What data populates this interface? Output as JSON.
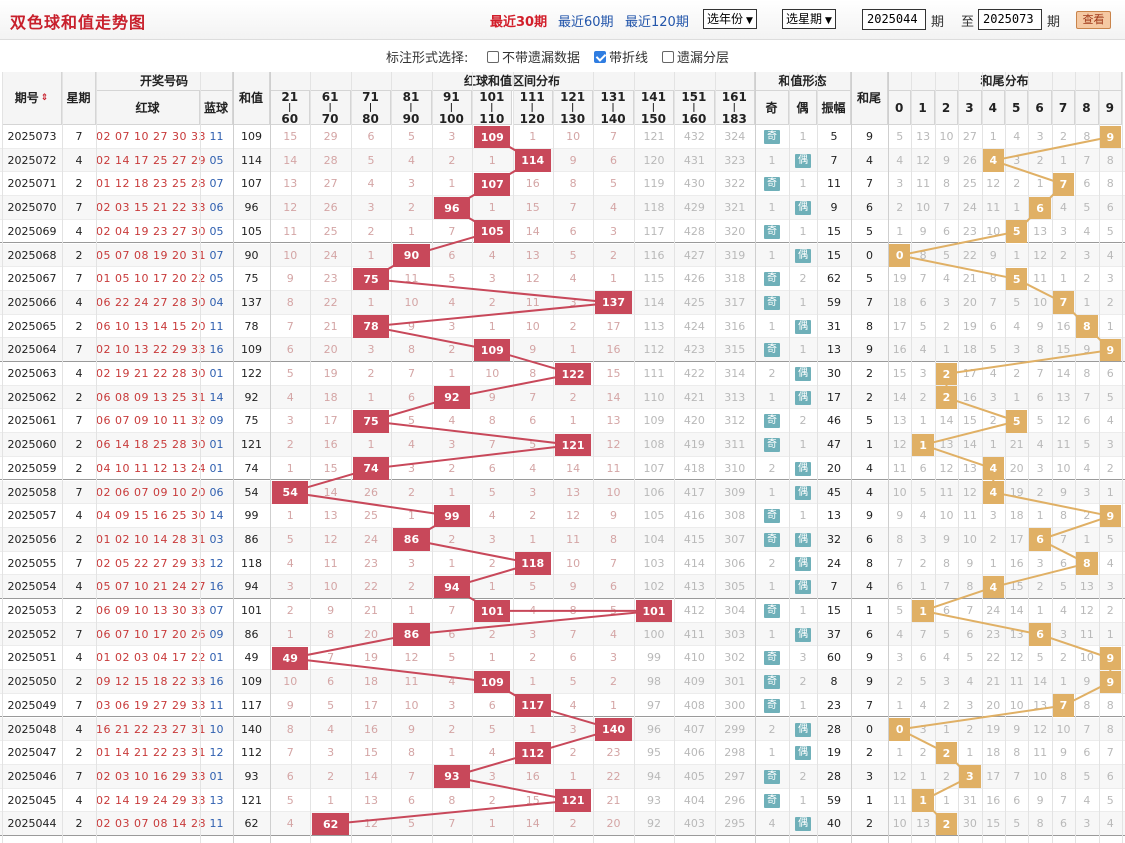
{
  "title": "双色球和值走势图",
  "periods": [
    {
      "label": "最近30期",
      "active": true
    },
    {
      "label": "最近60期",
      "active": false
    },
    {
      "label": "最近120期",
      "active": false
    }
  ],
  "year_select": "选年份",
  "weekday_select": "选星期",
  "from_value": "2025044",
  "from_suffix": "期",
  "to_label": "至",
  "to_value": "2025073",
  "to_suffix": "期",
  "query_button": "查看",
  "option_prompt": "标注形式选择:",
  "options": [
    {
      "label": "不带遗漏数据",
      "checked": false
    },
    {
      "label": "带折线",
      "checked": true
    },
    {
      "label": "遗漏分层",
      "checked": false
    }
  ],
  "headers": {
    "period": "期号",
    "weekday": "星期",
    "draw": "开奖号码",
    "red": "红球",
    "blue": "蓝球",
    "sum": "和值",
    "interval": "红球和值区间分布",
    "form": "和值形态",
    "tail": "和尾",
    "tail_dist": "和尾分布",
    "odd": "奇",
    "even": "偶",
    "amp": "振幅",
    "ranges": [
      [
        "21",
        "60"
      ],
      [
        "61",
        "70"
      ],
      [
        "71",
        "80"
      ],
      [
        "81",
        "90"
      ],
      [
        "91",
        "100"
      ],
      [
        "101",
        "110"
      ],
      [
        "111",
        "120"
      ],
      [
        "121",
        "130"
      ],
      [
        "131",
        "140"
      ],
      [
        "141",
        "150"
      ],
      [
        "151",
        "160"
      ],
      [
        "161",
        "183"
      ]
    ],
    "digits": [
      "0",
      "1",
      "2",
      "3",
      "4",
      "5",
      "6",
      "7",
      "8",
      "9"
    ]
  },
  "rows": [
    {
      "p": "2025073",
      "w": "7",
      "r": "02 07 10 27 30 33",
      "b": "11",
      "s": "109",
      "iv": [
        "15",
        "29",
        "6",
        "5",
        "3",
        "109",
        "1",
        "10",
        "7",
        "121",
        "432",
        "324"
      ],
      "o": "奇",
      "e": "1",
      "a": "5",
      "t": "9",
      "td": [
        "5",
        "13",
        "10",
        "27",
        "1",
        "4",
        "3",
        "2",
        "8",
        "9"
      ]
    },
    {
      "p": "2025072",
      "w": "4",
      "r": "02 14 17 25 27 29",
      "b": "05",
      "s": "114",
      "iv": [
        "14",
        "28",
        "5",
        "4",
        "2",
        "1",
        "114",
        "9",
        "6",
        "120",
        "431",
        "323"
      ],
      "o": "1",
      "e": "偶",
      "a": "7",
      "t": "4",
      "td": [
        "4",
        "12",
        "9",
        "26",
        "4",
        "3",
        "2",
        "1",
        "7",
        "8"
      ]
    },
    {
      "p": "2025071",
      "w": "2",
      "r": "01 12 18 23 25 28",
      "b": "07",
      "s": "107",
      "iv": [
        "13",
        "27",
        "4",
        "3",
        "1",
        "107",
        "16",
        "8",
        "5",
        "119",
        "430",
        "322"
      ],
      "o": "奇",
      "e": "1",
      "a": "11",
      "t": "7",
      "td": [
        "3",
        "11",
        "8",
        "25",
        "12",
        "2",
        "1",
        "7",
        "6",
        "8"
      ]
    },
    {
      "p": "2025070",
      "w": "7",
      "r": "02 03 15 21 22 33",
      "b": "06",
      "s": "96",
      "iv": [
        "12",
        "26",
        "3",
        "2",
        "96",
        "1",
        "15",
        "7",
        "4",
        "118",
        "429",
        "321"
      ],
      "o": "1",
      "e": "偶",
      "a": "9",
      "t": "6",
      "td": [
        "2",
        "10",
        "7",
        "24",
        "11",
        "1",
        "6",
        "4",
        "5",
        "6"
      ]
    },
    {
      "p": "2025069",
      "w": "4",
      "r": "02 04 19 23 27 30",
      "b": "05",
      "s": "105",
      "iv": [
        "11",
        "25",
        "2",
        "1",
        "7",
        "105",
        "14",
        "6",
        "3",
        "117",
        "428",
        "320"
      ],
      "o": "奇",
      "e": "1",
      "a": "15",
      "t": "5",
      "td": [
        "1",
        "9",
        "6",
        "23",
        "10",
        "5",
        "13",
        "3",
        "4",
        "5"
      ]
    },
    {
      "p": "2025068",
      "w": "2",
      "r": "05 07 08 19 20 31",
      "b": "07",
      "s": "90",
      "iv": [
        "10",
        "24",
        "1",
        "90",
        "6",
        "4",
        "13",
        "5",
        "2",
        "116",
        "427",
        "319"
      ],
      "o": "1",
      "e": "偶",
      "a": "15",
      "t": "0",
      "td": [
        "0",
        "8",
        "5",
        "22",
        "9",
        "1",
        "12",
        "2",
        "3",
        "4"
      ]
    },
    {
      "p": "2025067",
      "w": "7",
      "r": "01 05 10 17 20 22",
      "b": "05",
      "s": "75",
      "iv": [
        "9",
        "23",
        "75",
        "11",
        "5",
        "3",
        "12",
        "4",
        "1",
        "115",
        "426",
        "318"
      ],
      "o": "奇",
      "e": "2",
      "a": "62",
      "t": "5",
      "td": [
        "19",
        "7",
        "4",
        "21",
        "8",
        "5",
        "11",
        "1",
        "2",
        "3"
      ]
    },
    {
      "p": "2025066",
      "w": "4",
      "r": "06 22 24 27 28 30",
      "b": "04",
      "s": "137",
      "iv": [
        "8",
        "22",
        "1",
        "10",
        "4",
        "2",
        "11",
        "3",
        "137",
        "114",
        "425",
        "317"
      ],
      "o": "奇",
      "e": "1",
      "a": "59",
      "t": "7",
      "td": [
        "18",
        "6",
        "3",
        "20",
        "7",
        "5",
        "10",
        "7",
        "1",
        "2"
      ]
    },
    {
      "p": "2025065",
      "w": "2",
      "r": "06 10 13 14 15 20",
      "b": "11",
      "s": "78",
      "iv": [
        "7",
        "21",
        "78",
        "9",
        "3",
        "1",
        "10",
        "2",
        "17",
        "113",
        "424",
        "316"
      ],
      "o": "1",
      "e": "偶",
      "a": "31",
      "t": "8",
      "td": [
        "17",
        "5",
        "2",
        "19",
        "6",
        "4",
        "9",
        "16",
        "8",
        "1"
      ]
    },
    {
      "p": "2025064",
      "w": "7",
      "r": "02 10 13 22 29 33",
      "b": "16",
      "s": "109",
      "iv": [
        "6",
        "20",
        "3",
        "8",
        "2",
        "109",
        "9",
        "1",
        "16",
        "112",
        "423",
        "315"
      ],
      "o": "奇",
      "e": "1",
      "a": "13",
      "t": "9",
      "td": [
        "16",
        "4",
        "1",
        "18",
        "5",
        "3",
        "8",
        "15",
        "9",
        "9"
      ]
    },
    {
      "p": "2025063",
      "w": "4",
      "r": "02 19 21 22 28 30",
      "b": "01",
      "s": "122",
      "iv": [
        "5",
        "19",
        "2",
        "7",
        "1",
        "10",
        "8",
        "122",
        "15",
        "111",
        "422",
        "314"
      ],
      "o": "2",
      "e": "偶",
      "a": "30",
      "t": "2",
      "td": [
        "15",
        "3",
        "2",
        "17",
        "4",
        "2",
        "7",
        "14",
        "8",
        "6"
      ]
    },
    {
      "p": "2025062",
      "w": "2",
      "r": "06 08 09 13 25 31",
      "b": "14",
      "s": "92",
      "iv": [
        "4",
        "18",
        "1",
        "6",
        "92",
        "9",
        "7",
        "2",
        "14",
        "110",
        "421",
        "313"
      ],
      "o": "1",
      "e": "偶",
      "a": "17",
      "t": "2",
      "td": [
        "14",
        "2",
        "2",
        "16",
        "3",
        "1",
        "6",
        "13",
        "7",
        "5"
      ]
    },
    {
      "p": "2025061",
      "w": "7",
      "r": "06 07 09 10 11 32",
      "b": "09",
      "s": "75",
      "iv": [
        "3",
        "17",
        "75",
        "5",
        "4",
        "8",
        "6",
        "1",
        "13",
        "109",
        "420",
        "312"
      ],
      "o": "奇",
      "e": "2",
      "a": "46",
      "t": "5",
      "td": [
        "13",
        "1",
        "14",
        "15",
        "2",
        "5",
        "5",
        "12",
        "6",
        "4"
      ]
    },
    {
      "p": "2025060",
      "w": "2",
      "r": "06 14 18 25 28 30",
      "b": "01",
      "s": "121",
      "iv": [
        "2",
        "16",
        "1",
        "4",
        "3",
        "7",
        "5",
        "121",
        "12",
        "108",
        "419",
        "311"
      ],
      "o": "奇",
      "e": "1",
      "a": "47",
      "t": "1",
      "td": [
        "12",
        "1",
        "13",
        "14",
        "1",
        "21",
        "4",
        "11",
        "5",
        "3"
      ]
    },
    {
      "p": "2025059",
      "w": "2",
      "r": "04 10 11 12 13 24",
      "b": "01",
      "s": "74",
      "iv": [
        "1",
        "15",
        "74",
        "3",
        "2",
        "6",
        "4",
        "14",
        "11",
        "107",
        "418",
        "310"
      ],
      "o": "2",
      "e": "偶",
      "a": "20",
      "t": "4",
      "td": [
        "11",
        "6",
        "12",
        "13",
        "4",
        "20",
        "3",
        "10",
        "4",
        "2"
      ]
    },
    {
      "p": "2025058",
      "w": "7",
      "r": "02 06 07 09 10 20",
      "b": "06",
      "s": "54",
      "iv": [
        "54",
        "14",
        "26",
        "2",
        "1",
        "5",
        "3",
        "13",
        "10",
        "106",
        "417",
        "309"
      ],
      "o": "1",
      "e": "偶",
      "a": "45",
      "t": "4",
      "td": [
        "10",
        "5",
        "11",
        "12",
        "4",
        "19",
        "2",
        "9",
        "3",
        "1"
      ]
    },
    {
      "p": "2025057",
      "w": "4",
      "r": "04 09 15 16 25 30",
      "b": "14",
      "s": "99",
      "iv": [
        "1",
        "13",
        "25",
        "1",
        "99",
        "4",
        "2",
        "12",
        "9",
        "105",
        "416",
        "308"
      ],
      "o": "奇",
      "e": "1",
      "a": "13",
      "t": "9",
      "td": [
        "9",
        "4",
        "10",
        "11",
        "3",
        "18",
        "1",
        "8",
        "2",
        "9"
      ]
    },
    {
      "p": "2025056",
      "w": "2",
      "r": "01 02 10 14 28 31",
      "b": "03",
      "s": "86",
      "iv": [
        "5",
        "12",
        "24",
        "86",
        "2",
        "3",
        "1",
        "11",
        "8",
        "104",
        "415",
        "307"
      ],
      "o": "奇",
      "e": "偶",
      "a": "32",
      "t": "6",
      "td": [
        "8",
        "3",
        "9",
        "10",
        "2",
        "17",
        "6",
        "7",
        "1",
        "5"
      ]
    },
    {
      "p": "2025055",
      "w": "7",
      "r": "02 05 22 27 29 33",
      "b": "12",
      "s": "118",
      "iv": [
        "4",
        "11",
        "23",
        "3",
        "1",
        "2",
        "118",
        "10",
        "7",
        "103",
        "414",
        "306"
      ],
      "o": "2",
      "e": "偶",
      "a": "24",
      "t": "8",
      "td": [
        "7",
        "2",
        "8",
        "9",
        "1",
        "16",
        "3",
        "6",
        "8",
        "4"
      ]
    },
    {
      "p": "2025054",
      "w": "4",
      "r": "05 07 10 21 24 27",
      "b": "16",
      "s": "94",
      "iv": [
        "3",
        "10",
        "22",
        "2",
        "94",
        "1",
        "5",
        "9",
        "6",
        "102",
        "413",
        "305"
      ],
      "o": "1",
      "e": "偶",
      "a": "7",
      "t": "4",
      "td": [
        "6",
        "1",
        "7",
        "8",
        "4",
        "15",
        "2",
        "5",
        "13",
        "3"
      ]
    },
    {
      "p": "2025053",
      "w": "2",
      "r": "06 09 10 13 30 33",
      "b": "07",
      "s": "101",
      "iv": [
        "2",
        "9",
        "21",
        "1",
        "7",
        "101",
        "4",
        "8",
        "5",
        "101",
        "412",
        "304"
      ],
      "o": "奇",
      "e": "1",
      "a": "15",
      "t": "1",
      "td": [
        "5",
        "1",
        "6",
        "7",
        "24",
        "14",
        "1",
        "4",
        "12",
        "2"
      ]
    },
    {
      "p": "2025052",
      "w": "7",
      "r": "06 07 10 17 20 26",
      "b": "09",
      "s": "86",
      "iv": [
        "1",
        "8",
        "20",
        "86",
        "6",
        "2",
        "3",
        "7",
        "4",
        "100",
        "411",
        "303"
      ],
      "o": "1",
      "e": "偶",
      "a": "37",
      "t": "6",
      "td": [
        "4",
        "7",
        "5",
        "6",
        "23",
        "13",
        "6",
        "3",
        "11",
        "1"
      ]
    },
    {
      "p": "2025051",
      "w": "4",
      "r": "01 02 03 04 17 22",
      "b": "01",
      "s": "49",
      "iv": [
        "49",
        "7",
        "19",
        "12",
        "5",
        "1",
        "2",
        "6",
        "3",
        "99",
        "410",
        "302"
      ],
      "o": "奇",
      "e": "3",
      "a": "60",
      "t": "9",
      "td": [
        "3",
        "6",
        "4",
        "5",
        "22",
        "12",
        "5",
        "2",
        "10",
        "9"
      ]
    },
    {
      "p": "2025050",
      "w": "2",
      "r": "09 12 15 18 22 33",
      "b": "16",
      "s": "109",
      "iv": [
        "10",
        "6",
        "18",
        "11",
        "4",
        "109",
        "1",
        "5",
        "2",
        "98",
        "409",
        "301"
      ],
      "o": "奇",
      "e": "2",
      "a": "8",
      "t": "9",
      "td": [
        "2",
        "5",
        "3",
        "4",
        "21",
        "11",
        "14",
        "1",
        "9",
        "9"
      ]
    },
    {
      "p": "2025049",
      "w": "7",
      "r": "03 06 19 27 29 33",
      "b": "11",
      "s": "117",
      "iv": [
        "9",
        "5",
        "17",
        "10",
        "3",
        "6",
        "117",
        "4",
        "1",
        "97",
        "408",
        "300"
      ],
      "o": "奇",
      "e": "1",
      "a": "23",
      "t": "7",
      "td": [
        "1",
        "4",
        "2",
        "3",
        "20",
        "10",
        "13",
        "7",
        "8",
        "8"
      ]
    },
    {
      "p": "2025048",
      "w": "4",
      "r": "16 21 22 23 27 31",
      "b": "10",
      "s": "140",
      "iv": [
        "8",
        "4",
        "16",
        "9",
        "2",
        "5",
        "1",
        "3",
        "140",
        "96",
        "407",
        "299"
      ],
      "o": "2",
      "e": "偶",
      "a": "28",
      "t": "0",
      "td": [
        "0",
        "3",
        "1",
        "2",
        "19",
        "9",
        "12",
        "10",
        "7",
        "8"
      ]
    },
    {
      "p": "2025047",
      "w": "2",
      "r": "01 14 21 22 23 31",
      "b": "12",
      "s": "112",
      "iv": [
        "7",
        "3",
        "15",
        "8",
        "1",
        "4",
        "112",
        "2",
        "23",
        "95",
        "406",
        "298"
      ],
      "o": "1",
      "e": "偶",
      "a": "19",
      "t": "2",
      "td": [
        "1",
        "2",
        "2",
        "1",
        "18",
        "8",
        "11",
        "9",
        "6",
        "7"
      ]
    },
    {
      "p": "2025046",
      "w": "7",
      "r": "02 03 10 16 29 33",
      "b": "01",
      "s": "93",
      "iv": [
        "6",
        "2",
        "14",
        "7",
        "93",
        "3",
        "16",
        "1",
        "22",
        "94",
        "405",
        "297"
      ],
      "o": "奇",
      "e": "2",
      "a": "28",
      "t": "3",
      "td": [
        "12",
        "1",
        "2",
        "3",
        "17",
        "7",
        "10",
        "8",
        "5",
        "6"
      ]
    },
    {
      "p": "2025045",
      "w": "4",
      "r": "02 14 19 24 29 33",
      "b": "13",
      "s": "121",
      "iv": [
        "5",
        "1",
        "13",
        "6",
        "8",
        "2",
        "15",
        "121",
        "21",
        "93",
        "404",
        "296"
      ],
      "o": "奇",
      "e": "1",
      "a": "59",
      "t": "1",
      "td": [
        "11",
        "1",
        "1",
        "31",
        "16",
        "6",
        "9",
        "7",
        "4",
        "5"
      ]
    },
    {
      "p": "2025044",
      "w": "2",
      "r": "02 03 07 08 14 28",
      "b": "11",
      "s": "62",
      "iv": [
        "4",
        "62",
        "12",
        "5",
        "7",
        "1",
        "14",
        "2",
        "20",
        "92",
        "403",
        "295"
      ],
      "o": "4",
      "e": "偶",
      "a": "40",
      "t": "2",
      "td": [
        "10",
        "13",
        "2",
        "30",
        "15",
        "5",
        "8",
        "6",
        "3",
        "4"
      ]
    }
  ]
}
